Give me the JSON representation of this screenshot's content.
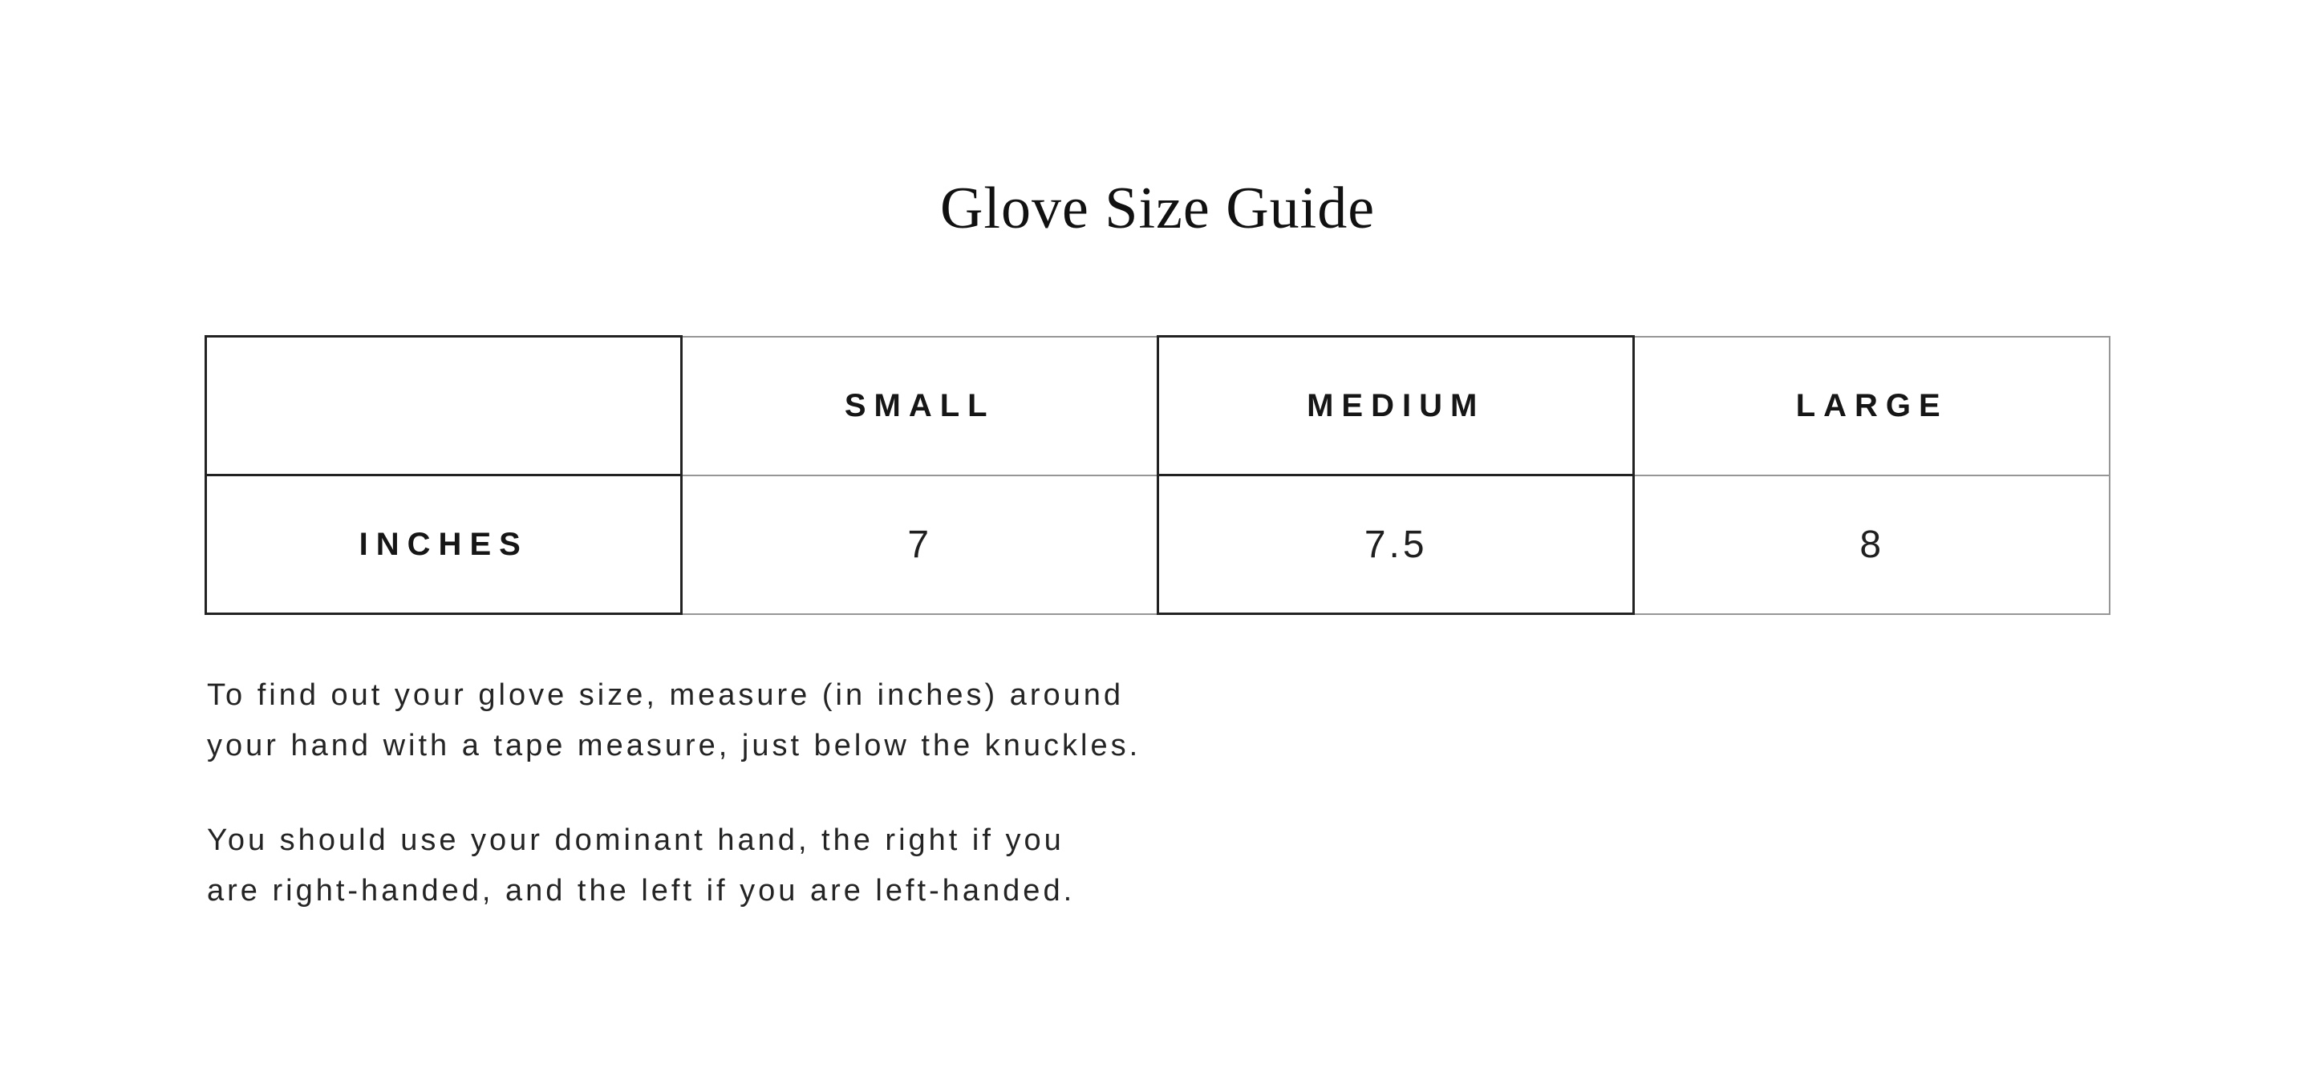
{
  "page": {
    "title": "Glove Size Guide"
  },
  "size_table": {
    "corner_label": "",
    "columns": [
      "SMALL",
      "MEDIUM",
      "LARGE"
    ],
    "row_label": "INCHES",
    "values": [
      "7",
      "7.5",
      "8"
    ]
  },
  "instructions": {
    "p1_line1": "To find out your glove size, measure (in inches) around",
    "p1_line2": "your hand with a tape measure, just below the knuckles.",
    "p2_line1": "You should use your dominant hand, the right if you",
    "p2_line2": "are right-handed, and the left if you are left-handed."
  },
  "colors": {
    "background": "#ffffff",
    "text": "#1a1a1a",
    "table_border_default": "#969696",
    "table_border_emphasis": "#222222"
  }
}
